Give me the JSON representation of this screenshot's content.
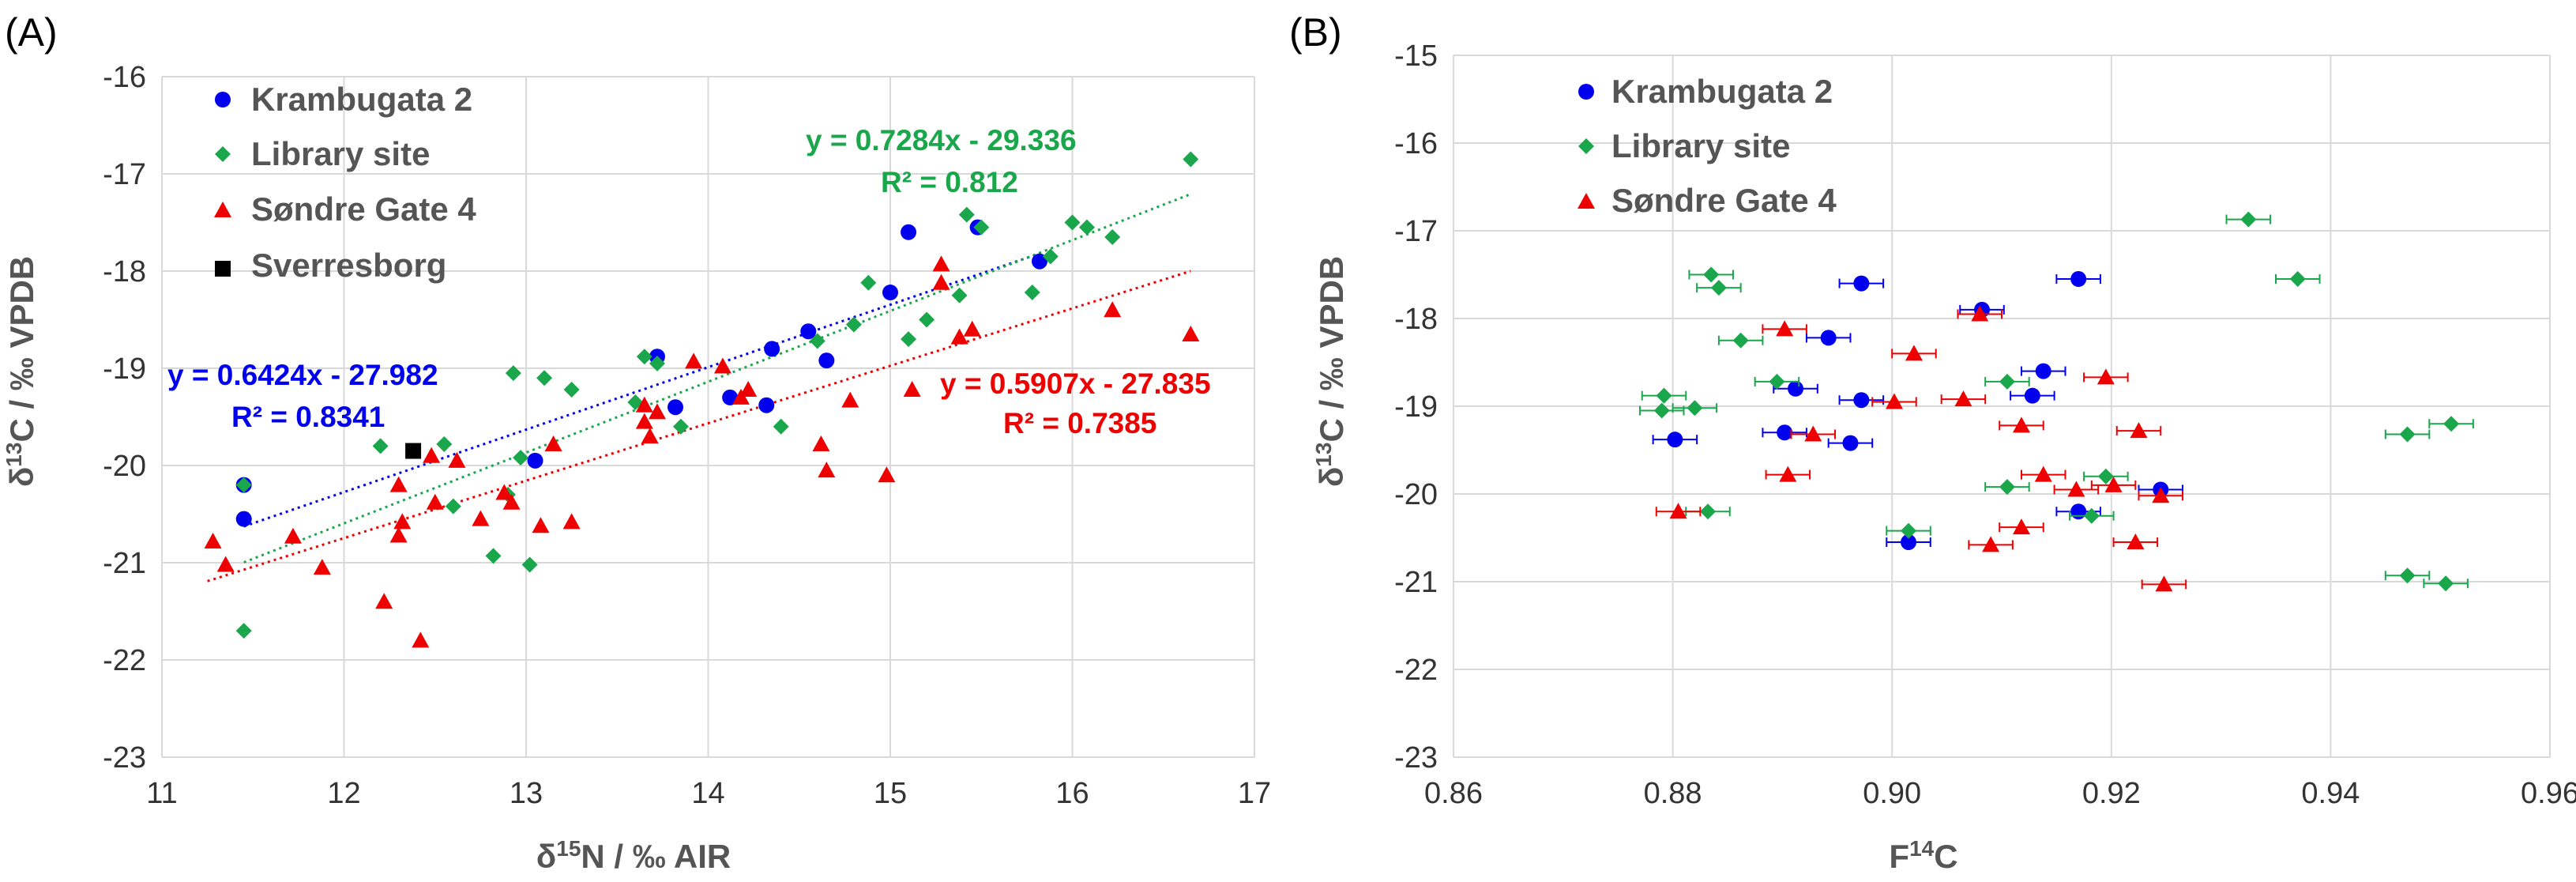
{
  "colors": {
    "krambugata": "#0000ee",
    "library": "#1aa64a",
    "sondre": "#ee0000",
    "sverresborg": "#000000",
    "grid": "#d9d9d9",
    "axis_text": "#333333"
  },
  "panels": [
    {
      "label": "(A)",
      "chart_data": {
        "type": "scatter",
        "xlabel": "δ15N / ‰ AIR",
        "ylabel": "δ13C / ‰ VPDB",
        "xlim": [
          11,
          17
        ],
        "ylim": [
          -23,
          -16
        ],
        "xticks": [
          "11",
          "12",
          "13",
          "14",
          "15",
          "16",
          "17"
        ],
        "yticks": [
          "-16",
          "-17",
          "-18",
          "-19",
          "-20",
          "-21",
          "-22",
          "-23"
        ],
        "legend": [
          "Krambugata 2",
          "Library site",
          "Søndre Gate 4",
          "Sverresborg"
        ],
        "series": [
          {
            "name": "Krambugata 2",
            "color_key": "krambugata",
            "marker": "circle",
            "points": [
              [
                11.45,
                -20.2
              ],
              [
                11.45,
                -20.55
              ],
              [
                13.05,
                -19.95
              ],
              [
                13.72,
                -18.88
              ],
              [
                13.82,
                -19.4
              ],
              [
                14.12,
                -19.3
              ],
              [
                14.35,
                -18.8
              ],
              [
                14.32,
                -19.38
              ],
              [
                14.55,
                -18.62
              ],
              [
                14.65,
                -18.92
              ],
              [
                15.0,
                -18.22
              ],
              [
                15.1,
                -17.6
              ],
              [
                15.48,
                -17.55
              ],
              [
                15.82,
                -17.9
              ]
            ]
          },
          {
            "name": "Library site",
            "color_key": "library",
            "marker": "diamond",
            "points": [
              [
                11.45,
                -20.2
              ],
              [
                11.45,
                -21.7
              ],
              [
                12.2,
                -19.8
              ],
              [
                12.55,
                -19.78
              ],
              [
                12.6,
                -20.42
              ],
              [
                12.82,
                -20.93
              ],
              [
                12.9,
                -20.3
              ],
              [
                12.93,
                -19.05
              ],
              [
                12.97,
                -19.92
              ],
              [
                13.02,
                -21.02
              ],
              [
                13.1,
                -19.1
              ],
              [
                13.25,
                -19.22
              ],
              [
                13.6,
                -19.35
              ],
              [
                13.65,
                -18.88
              ],
              [
                13.72,
                -18.95
              ],
              [
                13.85,
                -19.6
              ],
              [
                14.4,
                -19.6
              ],
              [
                14.6,
                -18.72
              ],
              [
                14.8,
                -18.55
              ],
              [
                14.88,
                -18.12
              ],
              [
                15.1,
                -18.7
              ],
              [
                15.2,
                -18.5
              ],
              [
                15.38,
                -18.25
              ],
              [
                15.42,
                -17.42
              ],
              [
                15.5,
                -17.55
              ],
              [
                15.78,
                -18.22
              ],
              [
                15.88,
                -17.85
              ],
              [
                16.0,
                -17.5
              ],
              [
                16.08,
                -17.55
              ],
              [
                16.22,
                -17.65
              ],
              [
                16.65,
                -16.85
              ]
            ]
          },
          {
            "name": "Søndre Gate 4",
            "color_key": "sondre",
            "marker": "triangle",
            "points": [
              [
                11.28,
                -20.78
              ],
              [
                11.35,
                -21.02
              ],
              [
                11.72,
                -20.73
              ],
              [
                11.88,
                -21.05
              ],
              [
                12.22,
                -21.4
              ],
              [
                12.3,
                -20.2
              ],
              [
                12.3,
                -20.72
              ],
              [
                12.32,
                -20.58
              ],
              [
                12.42,
                -21.8
              ],
              [
                12.48,
                -19.9
              ],
              [
                12.5,
                -20.38
              ],
              [
                12.62,
                -19.95
              ],
              [
                12.75,
                -20.55
              ],
              [
                12.88,
                -20.28
              ],
              [
                12.92,
                -20.38
              ],
              [
                13.08,
                -20.62
              ],
              [
                13.15,
                -19.78
              ],
              [
                13.25,
                -20.58
              ],
              [
                13.65,
                -19.38
              ],
              [
                13.65,
                -19.55
              ],
              [
                13.68,
                -19.7
              ],
              [
                13.72,
                -19.45
              ],
              [
                13.92,
                -18.93
              ],
              [
                14.08,
                -18.98
              ],
              [
                14.18,
                -19.3
              ],
              [
                14.22,
                -19.22
              ],
              [
                14.78,
                -19.33
              ],
              [
                14.98,
                -20.1
              ],
              [
                14.62,
                -19.78
              ],
              [
                14.65,
                -20.05
              ],
              [
                15.12,
                -19.22
              ],
              [
                15.28,
                -17.93
              ],
              [
                15.28,
                -18.12
              ],
              [
                15.38,
                -18.68
              ],
              [
                15.45,
                -18.6
              ],
              [
                16.22,
                -18.4
              ],
              [
                16.65,
                -18.65
              ]
            ]
          },
          {
            "name": "Sverresborg",
            "color_key": "sverresborg",
            "marker": "square",
            "points": [
              [
                12.38,
                -19.85
              ]
            ]
          }
        ],
        "trendlines": [
          {
            "series": "Krambugata 2",
            "slope": 0.6424,
            "intercept": -27.982,
            "x_range": [
              11.45,
              15.82
            ],
            "equation": "y = 0.6424x - 27.982",
            "r2": "R² = 0.8341"
          },
          {
            "series": "Library site",
            "slope": 0.7284,
            "intercept": -29.336,
            "x_range": [
              11.45,
              16.65
            ],
            "equation": "y = 0.7284x - 29.336",
            "r2": "R² = 0.812"
          },
          {
            "series": "Søndre Gate 4",
            "slope": 0.5907,
            "intercept": -27.835,
            "x_range": [
              11.25,
              16.65
            ],
            "equation": "y = 0.5907x - 27.835",
            "r2": "R² = 0.7385"
          }
        ]
      }
    },
    {
      "label": "(B)",
      "chart_data": {
        "type": "scatter",
        "xlabel": "F14C",
        "ylabel": "δ13C / ‰ VPDB",
        "xlim": [
          0.86,
          0.96
        ],
        "ylim": [
          -23,
          -15
        ],
        "xticks": [
          "0.86",
          "0.88",
          "0.90",
          "0.92",
          "0.94",
          "0.96"
        ],
        "yticks": [
          "-15",
          "-16",
          "-17",
          "-18",
          "-19",
          "-20",
          "-21",
          "-22",
          "-23"
        ],
        "legend": [
          "Krambugata 2",
          "Library site",
          "Søndre Gate 4"
        ],
        "x_error": 0.002,
        "series": [
          {
            "name": "Krambugata 2",
            "color_key": "krambugata",
            "marker": "circle",
            "points": [
              [
                0.8972,
                -17.6
              ],
              [
                0.917,
                -17.55
              ],
              [
                0.9082,
                -17.9
              ],
              [
                0.8942,
                -18.22
              ],
              [
                0.9138,
                -18.6
              ],
              [
                0.9128,
                -18.88
              ],
              [
                0.8912,
                -18.8
              ],
              [
                0.8972,
                -18.93
              ],
              [
                0.8802,
                -19.38
              ],
              [
                0.8902,
                -19.3
              ],
              [
                0.8962,
                -19.42
              ],
              [
                0.9245,
                -19.95
              ],
              [
                0.917,
                -20.2
              ],
              [
                0.9015,
                -20.55
              ]
            ]
          },
          {
            "name": "Library site",
            "color_key": "library",
            "marker": "diamond",
            "points": [
              [
                0.9325,
                -16.87
              ],
              [
                0.937,
                -17.55
              ],
              [
                0.8835,
                -17.5
              ],
              [
                0.8842,
                -17.65
              ],
              [
                0.8862,
                -18.25
              ],
              [
                0.8895,
                -18.72
              ],
              [
                0.9105,
                -18.72
              ],
              [
                0.8792,
                -18.88
              ],
              [
                0.879,
                -19.05
              ],
              [
                0.882,
                -19.02
              ],
              [
                0.951,
                -19.2
              ],
              [
                0.947,
                -19.32
              ],
              [
                0.9105,
                -19.92
              ],
              [
                0.9195,
                -19.8
              ],
              [
                0.9182,
                -20.25
              ],
              [
                0.8832,
                -20.2
              ],
              [
                0.9015,
                -20.42
              ],
              [
                0.947,
                -20.93
              ],
              [
                0.9505,
                -21.02
              ]
            ]
          },
          {
            "name": "Søndre Gate 4",
            "color_key": "sondre",
            "marker": "triangle",
            "points": [
              [
                0.8902,
                -18.12
              ],
              [
                0.908,
                -17.95
              ],
              [
                0.902,
                -18.4
              ],
              [
                0.9195,
                -18.67
              ],
              [
                0.9002,
                -18.95
              ],
              [
                0.9065,
                -18.92
              ],
              [
                0.9118,
                -19.22
              ],
              [
                0.9225,
                -19.28
              ],
              [
                0.8928,
                -19.32
              ],
              [
                0.8905,
                -19.78
              ],
              [
                0.9138,
                -19.78
              ],
              [
                0.9168,
                -19.95
              ],
              [
                0.9202,
                -19.9
              ],
              [
                0.9245,
                -20.02
              ],
              [
                0.8805,
                -20.2
              ],
              [
                0.9118,
                -20.38
              ],
              [
                0.909,
                -20.58
              ],
              [
                0.9222,
                -20.55
              ],
              [
                0.9248,
                -21.03
              ]
            ]
          }
        ]
      }
    }
  ]
}
